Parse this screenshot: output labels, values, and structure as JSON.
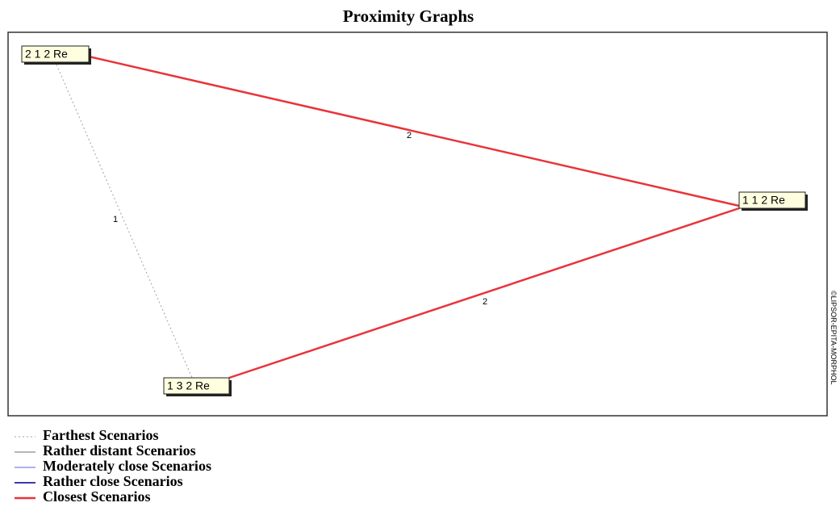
{
  "title": "Proximity Graphs",
  "nodes": [
    {
      "label": "2 1 2 Re"
    },
    {
      "label": "1 1 2 Re"
    },
    {
      "label": "1 3 2 Re"
    }
  ],
  "edges": [
    {
      "label": "2",
      "color": "#e8343a"
    },
    {
      "label": "2",
      "color": "#e8343a"
    },
    {
      "label": "1",
      "color": "#b0b0b0"
    }
  ],
  "legend": [
    {
      "label": "Farthest Scenarios",
      "color": "#b8b8b8"
    },
    {
      "label": "Rather distant Scenarios",
      "color": "#8a8a8a"
    },
    {
      "label": "Moderately close Scenarios",
      "color": "#8080e0"
    },
    {
      "label": "Rather close Scenarios",
      "color": "#3a3ab0"
    },
    {
      "label": "Closest Scenarios",
      "color": "#e8343a"
    }
  ],
  "copyright": "©LIPSOR-EPITA-MORPHOL"
}
